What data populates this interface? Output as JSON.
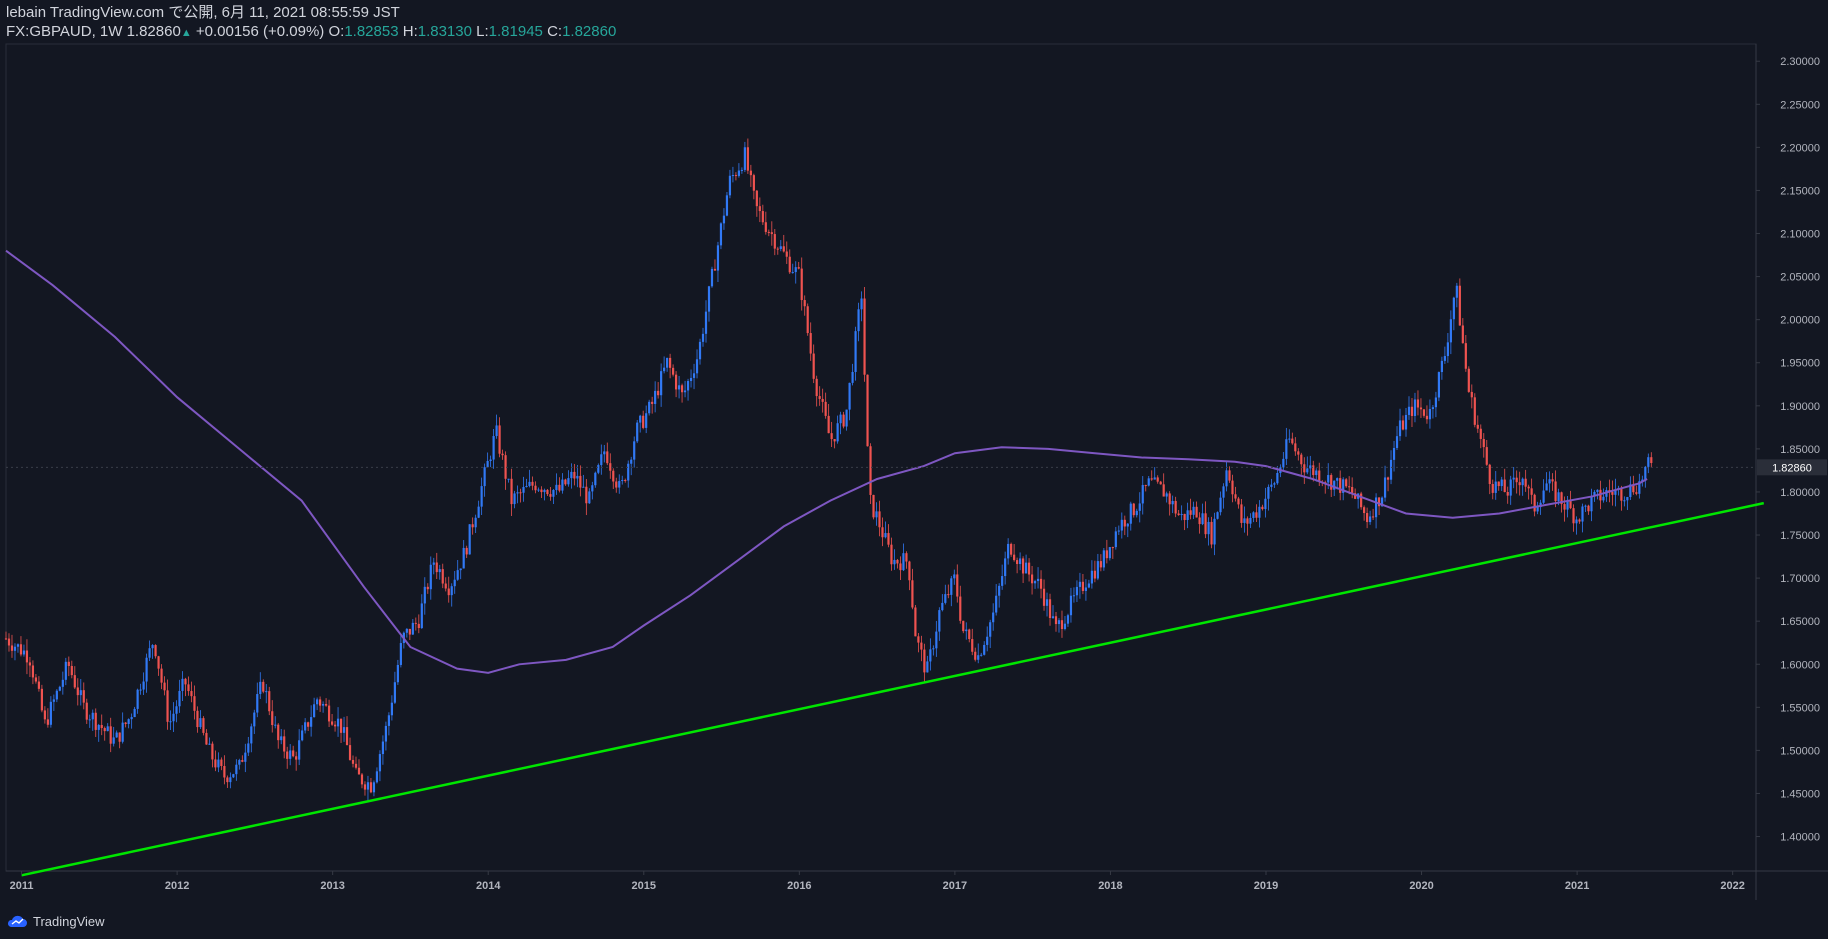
{
  "header": {
    "publish_line": "lebain TradingView.com で公開, 6月 11, 2021 08:55:59 JST",
    "symbol": "FX:GBPAUD, 1W",
    "last": "1.82860",
    "change": "+0.00156 (+0.09%)",
    "o_label": "O:",
    "o_value": "1.82853",
    "h_label": "H:",
    "h_value": "1.83130",
    "l_label": "L:",
    "l_value": "1.81945",
    "c_label": "C:",
    "c_value": "1.82860"
  },
  "footer": {
    "brand": "TradingView",
    "icon": "tradingview-cloud-icon"
  },
  "colors": {
    "background": "#131722",
    "up": "#3179f5",
    "down": "#ef5350",
    "ma": "#7e57c2",
    "trendline": "#00e600",
    "axis_text": "#b2b5be",
    "last_price_bg": "#2a2e39"
  },
  "chart_data": {
    "type": "candlestick",
    "symbol": "FX:GBPAUD",
    "interval": "1W",
    "ylim": [
      1.36,
      2.32
    ],
    "xlim": [
      2010.9,
      2022.15
    ],
    "y_ticks": [
      "1.40000",
      "1.45000",
      "1.50000",
      "1.55000",
      "1.60000",
      "1.65000",
      "1.70000",
      "1.75000",
      "1.80000",
      "1.85000",
      "1.90000",
      "1.95000",
      "2.00000",
      "2.05000",
      "2.10000",
      "2.15000",
      "2.20000",
      "2.25000",
      "2.30000"
    ],
    "x_ticks": [
      "2011",
      "2012",
      "2013",
      "2014",
      "2015",
      "2016",
      "2017",
      "2018",
      "2019",
      "2020",
      "2021",
      "2022"
    ],
    "last_price": 1.8286,
    "last_price_label": "1.82860",
    "price_path": [
      [
        2010.9,
        1.63
      ],
      [
        2011.05,
        1.61
      ],
      [
        2011.15,
        1.53
      ],
      [
        2011.3,
        1.6
      ],
      [
        2011.4,
        1.55
      ],
      [
        2011.5,
        1.53
      ],
      [
        2011.6,
        1.51
      ],
      [
        2011.7,
        1.54
      ],
      [
        2011.85,
        1.63
      ],
      [
        2011.95,
        1.53
      ],
      [
        2012.05,
        1.58
      ],
      [
        2012.2,
        1.5
      ],
      [
        2012.3,
        1.47
      ],
      [
        2012.4,
        1.48
      ],
      [
        2012.55,
        1.58
      ],
      [
        2012.65,
        1.51
      ],
      [
        2012.75,
        1.49
      ],
      [
        2012.9,
        1.56
      ],
      [
        2013.05,
        1.53
      ],
      [
        2013.15,
        1.47
      ],
      [
        2013.25,
        1.46
      ],
      [
        2013.35,
        1.53
      ],
      [
        2013.45,
        1.63
      ],
      [
        2013.55,
        1.65
      ],
      [
        2013.65,
        1.72
      ],
      [
        2013.75,
        1.69
      ],
      [
        2013.85,
        1.73
      ],
      [
        2013.95,
        1.8
      ],
      [
        2014.05,
        1.87
      ],
      [
        2014.15,
        1.79
      ],
      [
        2014.3,
        1.81
      ],
      [
        2014.45,
        1.8
      ],
      [
        2014.55,
        1.82
      ],
      [
        2014.65,
        1.79
      ],
      [
        2014.75,
        1.85
      ],
      [
        2014.85,
        1.8
      ],
      [
        2014.95,
        1.87
      ],
      [
        2015.05,
        1.9
      ],
      [
        2015.15,
        1.95
      ],
      [
        2015.25,
        1.91
      ],
      [
        2015.35,
        1.96
      ],
      [
        2015.45,
        2.06
      ],
      [
        2015.55,
        2.16
      ],
      [
        2015.65,
        2.19
      ],
      [
        2015.72,
        2.13
      ],
      [
        2015.82,
        2.1
      ],
      [
        2015.92,
        2.07
      ],
      [
        2016.0,
        2.05
      ],
      [
        2016.1,
        1.93
      ],
      [
        2016.2,
        1.86
      ],
      [
        2016.3,
        1.89
      ],
      [
        2016.4,
        2.03
      ],
      [
        2016.45,
        1.79
      ],
      [
        2016.5,
        1.77
      ],
      [
        2016.6,
        1.72
      ],
      [
        2016.7,
        1.72
      ],
      [
        2016.75,
        1.63
      ],
      [
        2016.82,
        1.59
      ],
      [
        2016.9,
        1.66
      ],
      [
        2017.0,
        1.7
      ],
      [
        2017.05,
        1.64
      ],
      [
        2017.15,
        1.61
      ],
      [
        2017.25,
        1.66
      ],
      [
        2017.35,
        1.74
      ],
      [
        2017.45,
        1.71
      ],
      [
        2017.55,
        1.69
      ],
      [
        2017.65,
        1.64
      ],
      [
        2017.75,
        1.67
      ],
      [
        2017.85,
        1.7
      ],
      [
        2017.95,
        1.72
      ],
      [
        2018.05,
        1.76
      ],
      [
        2018.15,
        1.78
      ],
      [
        2018.25,
        1.81
      ],
      [
        2018.35,
        1.8
      ],
      [
        2018.45,
        1.77
      ],
      [
        2018.55,
        1.78
      ],
      [
        2018.65,
        1.75
      ],
      [
        2018.75,
        1.83
      ],
      [
        2018.85,
        1.76
      ],
      [
        2018.95,
        1.78
      ],
      [
        2019.05,
        1.81
      ],
      [
        2019.15,
        1.86
      ],
      [
        2019.25,
        1.83
      ],
      [
        2019.35,
        1.82
      ],
      [
        2019.45,
        1.81
      ],
      [
        2019.55,
        1.8
      ],
      [
        2019.65,
        1.77
      ],
      [
        2019.75,
        1.8
      ],
      [
        2019.85,
        1.87
      ],
      [
        2019.95,
        1.9
      ],
      [
        2020.05,
        1.89
      ],
      [
        2020.15,
        1.96
      ],
      [
        2020.22,
        2.04
      ],
      [
        2020.3,
        1.92
      ],
      [
        2020.38,
        1.86
      ],
      [
        2020.45,
        1.81
      ],
      [
        2020.55,
        1.8
      ],
      [
        2020.65,
        1.82
      ],
      [
        2020.72,
        1.78
      ],
      [
        2020.8,
        1.81
      ],
      [
        2020.9,
        1.79
      ],
      [
        2021.0,
        1.77
      ],
      [
        2021.1,
        1.79
      ],
      [
        2021.2,
        1.8
      ],
      [
        2021.3,
        1.8
      ],
      [
        2021.4,
        1.81
      ],
      [
        2021.45,
        1.83
      ],
      [
        2021.48,
        1.8286
      ]
    ],
    "ma_path": [
      [
        2010.9,
        2.08
      ],
      [
        2011.2,
        2.04
      ],
      [
        2011.6,
        1.98
      ],
      [
        2012.0,
        1.91
      ],
      [
        2012.4,
        1.85
      ],
      [
        2012.8,
        1.79
      ],
      [
        2013.2,
        1.69
      ],
      [
        2013.5,
        1.62
      ],
      [
        2013.8,
        1.595
      ],
      [
        2014.0,
        1.59
      ],
      [
        2014.2,
        1.6
      ],
      [
        2014.5,
        1.605
      ],
      [
        2014.8,
        1.62
      ],
      [
        2015.0,
        1.645
      ],
      [
        2015.3,
        1.68
      ],
      [
        2015.6,
        1.72
      ],
      [
        2015.9,
        1.76
      ],
      [
        2016.2,
        1.79
      ],
      [
        2016.5,
        1.815
      ],
      [
        2016.8,
        1.83
      ],
      [
        2017.0,
        1.845
      ],
      [
        2017.3,
        1.852
      ],
      [
        2017.6,
        1.85
      ],
      [
        2017.9,
        1.845
      ],
      [
        2018.2,
        1.84
      ],
      [
        2018.5,
        1.838
      ],
      [
        2018.8,
        1.835
      ],
      [
        2019.0,
        1.83
      ],
      [
        2019.3,
        1.815
      ],
      [
        2019.6,
        1.795
      ],
      [
        2019.9,
        1.775
      ],
      [
        2020.2,
        1.77
      ],
      [
        2020.5,
        1.775
      ],
      [
        2020.8,
        1.785
      ],
      [
        2021.1,
        1.795
      ],
      [
        2021.4,
        1.81
      ],
      [
        2021.45,
        1.815
      ]
    ],
    "trendline": [
      [
        2011.0,
        1.355
      ],
      [
        2022.2,
        1.787
      ]
    ]
  }
}
